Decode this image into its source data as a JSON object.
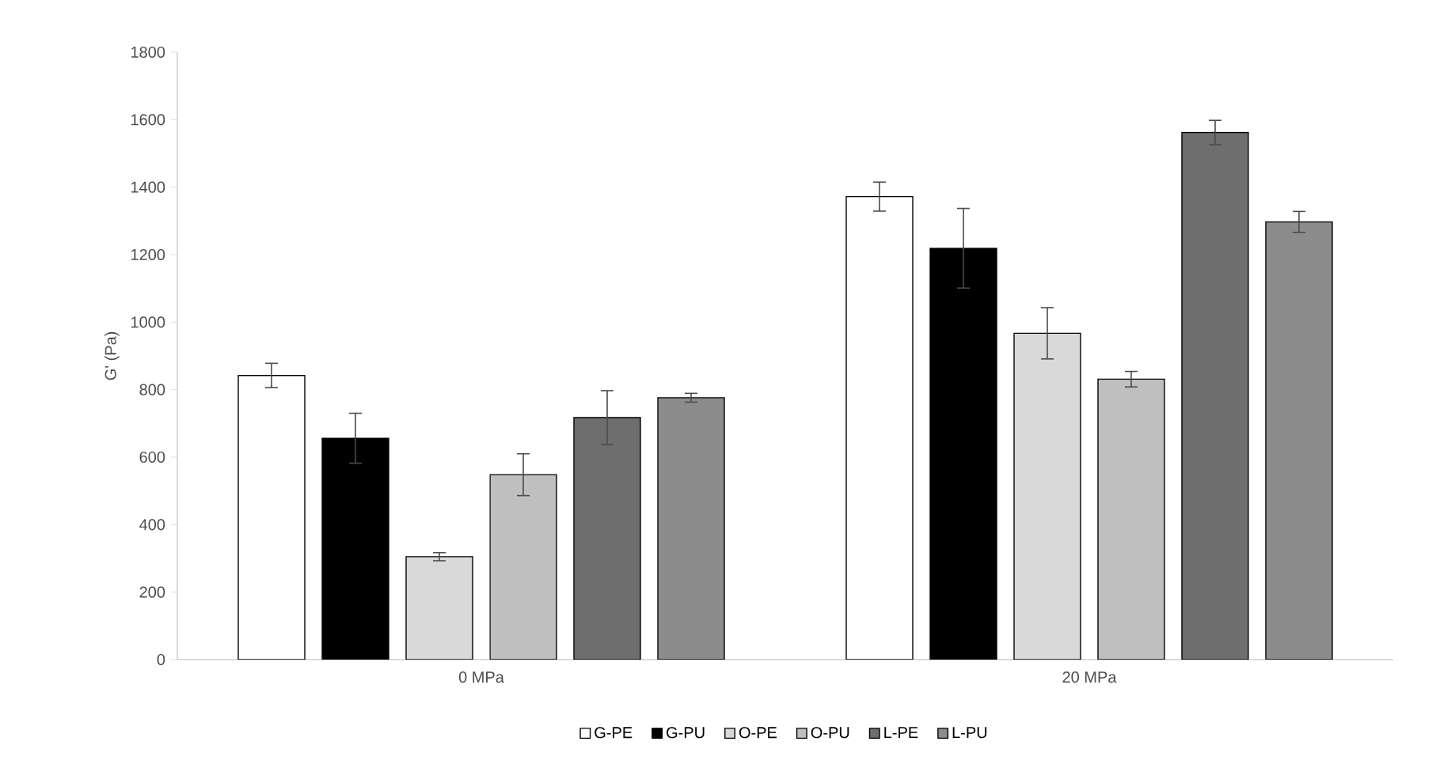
{
  "chart_data": {
    "type": "bar",
    "ylabel": "G' (Pa)",
    "categories": [
      "0 MPa",
      "20 MPa"
    ],
    "series": [
      {
        "name": "G-PE",
        "color": "#ffffff",
        "values": [
          842,
          1372
        ],
        "errors": [
          36,
          43
        ]
      },
      {
        "name": "G-PU",
        "color": "#000000",
        "values": [
          656,
          1219
        ],
        "errors": [
          74,
          118
        ]
      },
      {
        "name": "O-PE",
        "color": "#d9d9d9",
        "values": [
          305,
          967
        ],
        "errors": [
          12,
          76
        ]
      },
      {
        "name": "O-PU",
        "color": "#bfbfbf",
        "values": [
          548,
          831
        ],
        "errors": [
          62,
          23
        ]
      },
      {
        "name": "L-PE",
        "color": "#6e6e6e",
        "values": [
          717,
          1562
        ],
        "errors": [
          80,
          36
        ]
      },
      {
        "name": "L-PU",
        "color": "#8c8c8c",
        "values": [
          776,
          1297
        ],
        "errors": [
          13,
          31
        ]
      }
    ],
    "ylim": [
      0,
      1800
    ],
    "yticks": [
      0,
      200,
      400,
      600,
      800,
      1000,
      1200,
      1400,
      1600,
      1800
    ],
    "grid": false,
    "legend": "bottom"
  }
}
